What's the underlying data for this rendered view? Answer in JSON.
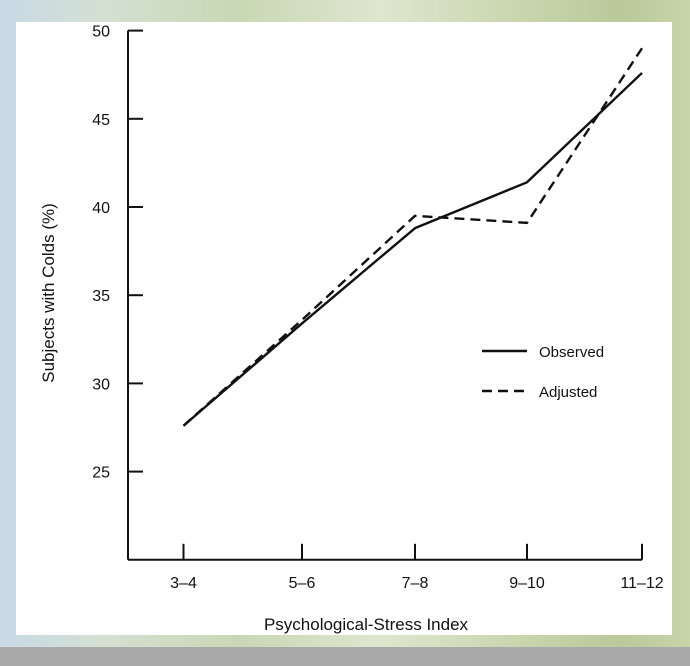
{
  "chart_data": {
    "type": "line",
    "categories": [
      "3–4",
      "5–6",
      "7–8",
      "9–10",
      "11–12"
    ],
    "series": [
      {
        "name": "Observed",
        "values": [
          27.6,
          33.4,
          38.8,
          41.4,
          47.6
        ],
        "style": "solid"
      },
      {
        "name": "Adjusted",
        "values": [
          27.6,
          33.6,
          39.5,
          39.1,
          49.0
        ],
        "style": "dashed"
      }
    ],
    "title": "",
    "xlabel": "Psychological-Stress Index",
    "ylabel": "Subjects with Colds (%)",
    "ylim": [
      20,
      50
    ],
    "yticks": [
      25,
      30,
      35,
      40,
      45,
      50
    ],
    "grid": false,
    "legend": "right",
    "colors": {
      "line": "#111111",
      "panel": "#ffffff",
      "footer_bar": "#a9a9a9"
    }
  }
}
